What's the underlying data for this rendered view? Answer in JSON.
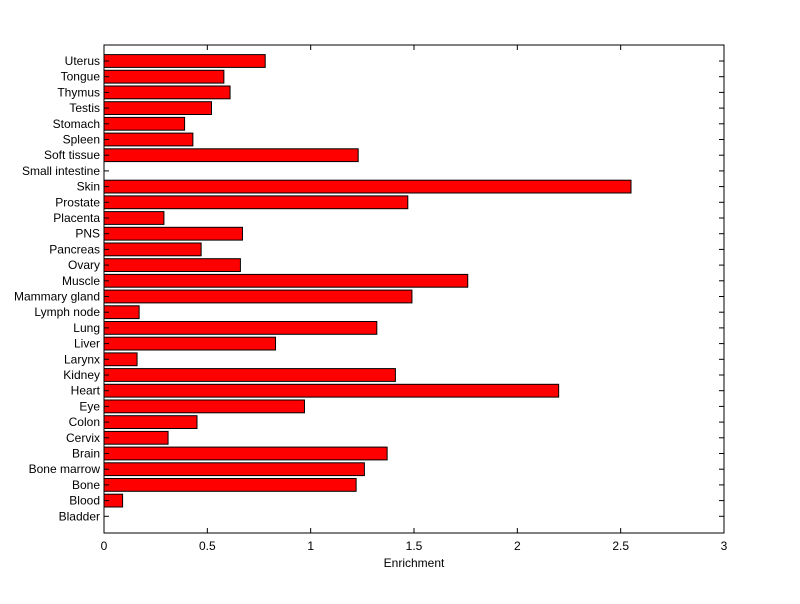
{
  "chart_data": {
    "type": "bar",
    "orientation": "horizontal",
    "categories": [
      "Uterus",
      "Tongue",
      "Thymus",
      "Testis",
      "Stomach",
      "Spleen",
      "Soft tissue",
      "Small intestine",
      "Skin",
      "Prostate",
      "Placenta",
      "PNS",
      "Pancreas",
      "Ovary",
      "Muscle",
      "Mammary gland",
      "Lymph node",
      "Lung",
      "Liver",
      "Larynx",
      "Kidney",
      "Heart",
      "Eye",
      "Colon",
      "Cervix",
      "Brain",
      "Bone marrow",
      "Bone",
      "Blood",
      "Bladder"
    ],
    "values": [
      0.78,
      0.58,
      0.61,
      0.52,
      0.39,
      0.43,
      1.23,
      0.0,
      2.55,
      1.47,
      0.29,
      0.67,
      0.47,
      0.66,
      1.76,
      1.49,
      0.17,
      1.32,
      0.83,
      0.16,
      1.41,
      2.2,
      0.97,
      0.45,
      0.31,
      1.37,
      1.26,
      1.22,
      0.09,
      0.0
    ],
    "xlabel": "Enrichment",
    "ylabel": "",
    "title": "",
    "xlim": [
      0,
      3
    ],
    "xticks": [
      0,
      0.5,
      1,
      1.5,
      2,
      2.5,
      3
    ],
    "xtick_labels": [
      "0",
      "0.5",
      "1",
      "1.5",
      "2",
      "2.5",
      "3"
    ],
    "grid": false,
    "bar_color": "#ff0000",
    "bar_edge_color": "#000000"
  }
}
